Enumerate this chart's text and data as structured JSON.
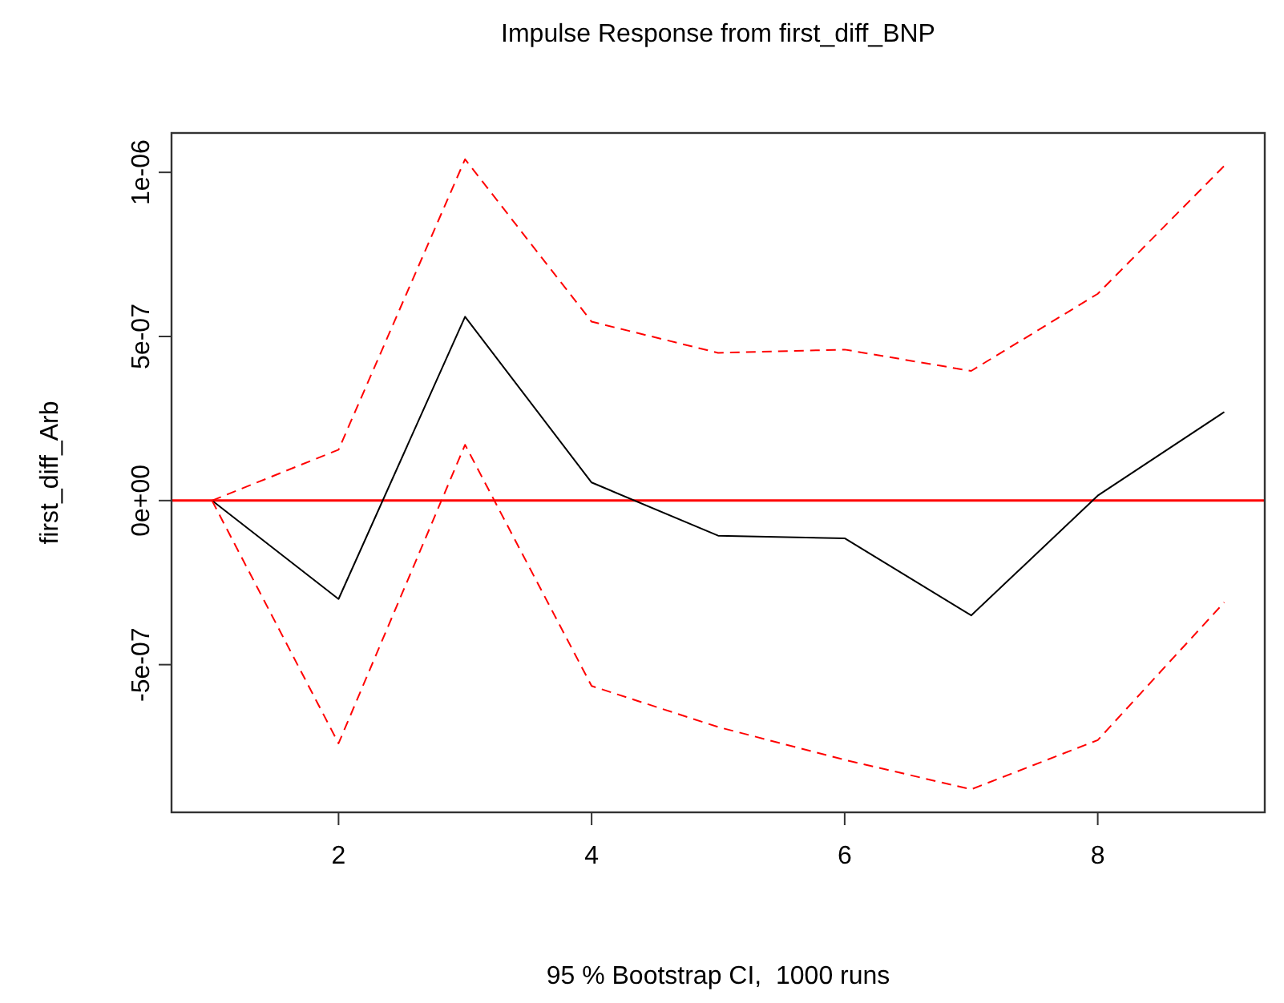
{
  "chart_data": {
    "type": "line",
    "title": "Impulse Response from first_diff_BNP",
    "xlabel": "95 % Bootstrap CI,  1000 runs",
    "ylabel": "first_diff_Arb",
    "x": [
      1,
      2,
      3,
      4,
      5,
      6,
      7,
      8,
      9
    ],
    "series": [
      {
        "color": "#000000",
        "line_style": "solid",
        "values": [
          0,
          -3e-07,
          5.6e-07,
          5.5e-08,
          -1.07e-07,
          -1.15e-07,
          -3.5e-07,
          1.5e-08,
          2.7e-07
        ]
      },
      {
        "color": "#ff0000",
        "line_style": "dashed",
        "values": [
          0,
          1.55e-07,
          1.04e-06,
          5.45e-07,
          4.5e-07,
          4.6e-07,
          3.95e-07,
          6.3e-07,
          1.02e-06
        ]
      },
      {
        "color": "#ff0000",
        "line_style": "dashed",
        "values": [
          0,
          -7.4e-07,
          1.7e-07,
          -5.65e-07,
          -6.9e-07,
          -7.9e-07,
          -8.8e-07,
          -7.3e-07,
          -3.1e-07
        ]
      }
    ],
    "xlim": [
      0.68,
      9.32
    ],
    "ylim": [
      -9.5e-07,
      1.12e-06
    ],
    "xticks": [
      2,
      4,
      6,
      8
    ],
    "yticks": [
      {
        "value": -5e-07,
        "label": "-5e-07"
      },
      {
        "value": 0,
        "label": "0e+00"
      },
      {
        "value": 5e-07,
        "label": "5e-07"
      },
      {
        "value": 1e-06,
        "label": "1e-06"
      }
    ],
    "ref_lines": [
      {
        "axis": "y",
        "value": 0,
        "color": "#ff0000",
        "line_style": "solid"
      }
    ],
    "grid": false,
    "marker": "none"
  }
}
